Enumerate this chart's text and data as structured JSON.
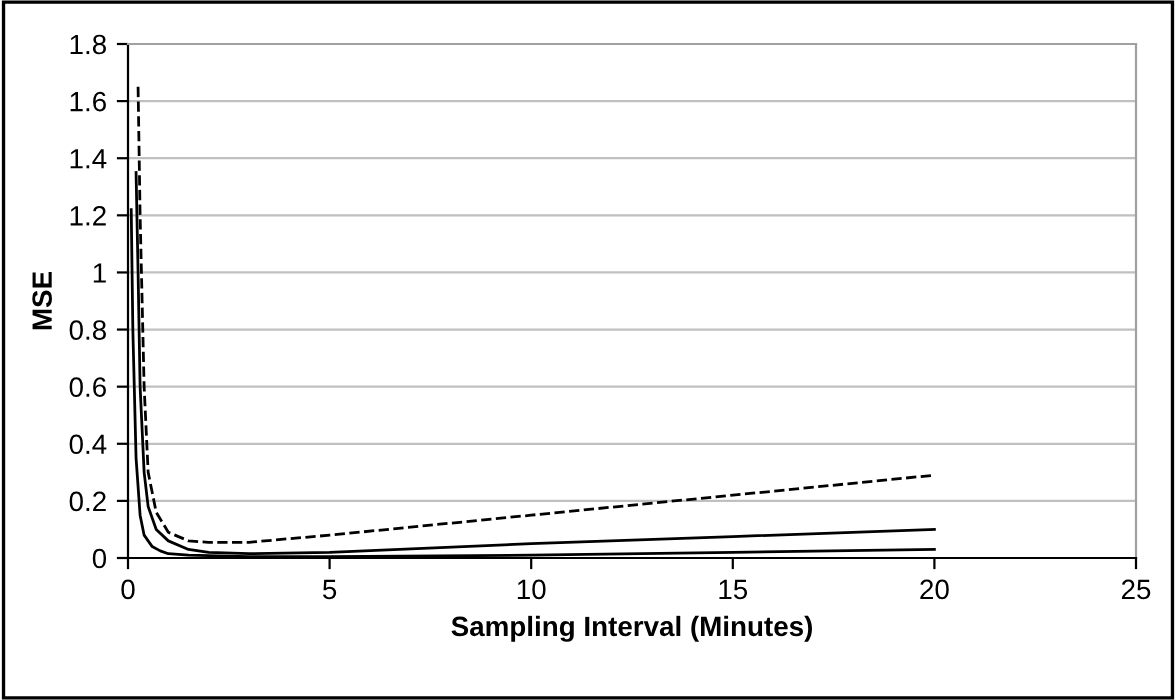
{
  "chart_data": {
    "type": "line",
    "xlabel": "Sampling Interval (Minutes)",
    "ylabel": "MSE",
    "xlim": [
      0,
      25
    ],
    "xticks": [
      0,
      5,
      10,
      15,
      20,
      25
    ],
    "ylim": [
      0,
      1.8
    ],
    "yticks": [
      0,
      0.2,
      0.4,
      0.6,
      0.8,
      1,
      1.2,
      1.4,
      1.6,
      1.8
    ],
    "grid": "y",
    "legend": false,
    "marker": "none",
    "series": [
      {
        "color": "#000000",
        "line_style": "dashed",
        "x": [
          0.25,
          0.3,
          0.4,
          0.5,
          0.7,
          1,
          1.5,
          2,
          3,
          5,
          10,
          15,
          20
        ],
        "values": [
          1.65,
          1.2,
          0.6,
          0.3,
          0.16,
          0.09,
          0.06,
          0.055,
          0.055,
          0.08,
          0.15,
          0.22,
          0.29
        ]
      },
      {
        "color": "#000000",
        "line_style": "solid",
        "x": [
          0.2,
          0.25,
          0.3,
          0.4,
          0.5,
          0.7,
          1,
          1.5,
          2,
          3,
          5,
          10,
          15,
          20
        ],
        "values": [
          1.35,
          1.0,
          0.6,
          0.3,
          0.18,
          0.1,
          0.06,
          0.03,
          0.02,
          0.015,
          0.02,
          0.05,
          0.075,
          0.1
        ]
      },
      {
        "color": "#000000",
        "line_style": "solid",
        "x": [
          0.08,
          0.12,
          0.2,
          0.3,
          0.4,
          0.6,
          0.8,
          1,
          1.5,
          2,
          3,
          5,
          10,
          15,
          20
        ],
        "values": [
          1.22,
          0.8,
          0.35,
          0.15,
          0.08,
          0.04,
          0.025,
          0.015,
          0.01,
          0.008,
          0.005,
          0.005,
          0.01,
          0.02,
          0.03
        ]
      }
    ]
  }
}
